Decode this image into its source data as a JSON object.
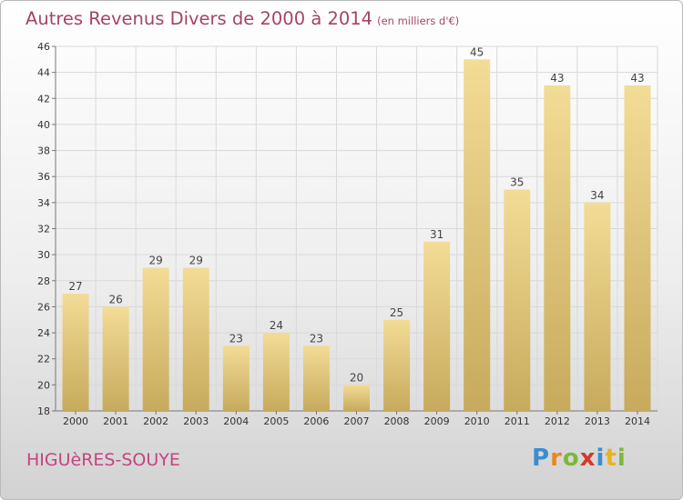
{
  "title": "Autres Revenus Divers de 2000 à 2014",
  "unit": "(en milliers d'€)",
  "commune": "HIGUèRES-SOUYE",
  "logo": {
    "p": "P",
    "r": "r",
    "o": "o",
    "x": "x",
    "i": "i",
    "t": "t",
    "i2": "i"
  },
  "colors": {
    "title": "#a44565",
    "commune": "#c4457f",
    "bar_light": "#f3dc96",
    "bar_dark": "#c7aa5c"
  },
  "chart_data": {
    "type": "bar",
    "categories": [
      "2000",
      "2001",
      "2002",
      "2003",
      "2004",
      "2005",
      "2006",
      "2007",
      "2008",
      "2009",
      "2010",
      "2011",
      "2012",
      "2013",
      "2014"
    ],
    "values": [
      27,
      26,
      29,
      29,
      23,
      24,
      23,
      20,
      25,
      31,
      45,
      35,
      43,
      34,
      43
    ],
    "ylim": [
      18,
      46
    ],
    "yticks": [
      18,
      20,
      22,
      24,
      26,
      28,
      30,
      32,
      34,
      36,
      38,
      40,
      42,
      44,
      46
    ],
    "grid": true,
    "data_labels": true
  }
}
